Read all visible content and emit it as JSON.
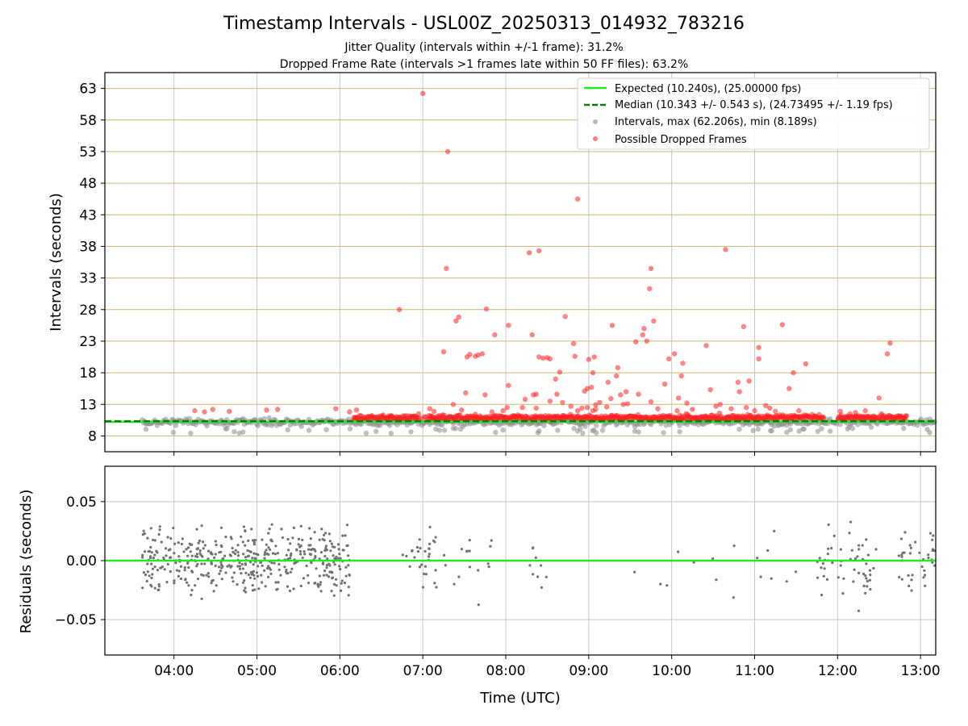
{
  "title": "Timestamp Intervals - USL00Z_20250313_014932_783216",
  "subtitle_1": "Jitter Quality (intervals within +/-1 frame): 31.2%",
  "subtitle_2": "Dropped Frame Rate (intervals >1 frames late within 50 FF files): 63.2%",
  "colors": {
    "expected": "#22e822",
    "median": "#0a7a0a",
    "intervals": "#8c8c8c",
    "dropped": "#ff2020",
    "hgrid_top": "#d2b76b",
    "grid": "#c8c8c8",
    "residual": "#707070"
  },
  "chart_data": [
    {
      "type": "scatter",
      "panel": "intervals",
      "ylabel": "Intervals (seconds)",
      "xlabel": "",
      "x_ticks": [
        "04:00",
        "05:00",
        "06:00",
        "07:00",
        "08:00",
        "09:00",
        "10:00",
        "11:00",
        "12:00",
        "13:00"
      ],
      "xlim": [
        "03:10",
        "13:11"
      ],
      "y_ticks": [
        8,
        13,
        18,
        23,
        28,
        33,
        38,
        43,
        48,
        53,
        58,
        63
      ],
      "ylim": [
        5.5,
        65.5
      ],
      "grid": true,
      "legend_position": "top-right",
      "legend": [
        "Expected (10.240s), (25.00000 fps)",
        "Median (10.343 +/- 0.543 s), (24.73495 +/- 1.19 fps)",
        "Intervals, max (62.206s), min (8.189s)",
        "Possible Dropped Frames"
      ],
      "expected_interval": 10.24,
      "median_interval": 10.343,
      "interval_max": 62.206,
      "interval_min": 8.189,
      "dropped_outliers": [
        [
          "04:15",
          12.0
        ],
        [
          "04:22",
          11.8
        ],
        [
          "04:28",
          12.2
        ],
        [
          "04:40",
          11.9
        ],
        [
          "05:07",
          12.1
        ],
        [
          "05:15",
          12.2
        ],
        [
          "05:57",
          12.3
        ],
        [
          "06:07",
          11.8
        ],
        [
          "06:12",
          12.1
        ],
        [
          "06:43",
          28.0
        ],
        [
          "06:57",
          11.5
        ],
        [
          "07:00",
          62.2
        ],
        [
          "07:05",
          12.3
        ],
        [
          "07:08",
          11.9
        ],
        [
          "07:15",
          21.3
        ],
        [
          "07:17",
          34.5
        ],
        [
          "07:18",
          53.0
        ],
        [
          "07:22",
          13.0
        ],
        [
          "07:24",
          26.2
        ],
        [
          "07:26",
          26.8
        ],
        [
          "07:28",
          12.1
        ],
        [
          "07:31",
          14.8
        ],
        [
          "07:32",
          20.5
        ],
        [
          "07:34",
          20.9
        ],
        [
          "07:38",
          20.6
        ],
        [
          "07:40",
          20.8
        ],
        [
          "07:43",
          21.0
        ],
        [
          "07:45",
          14.5
        ],
        [
          "07:46",
          28.1
        ],
        [
          "07:50",
          11.8
        ],
        [
          "07:52",
          24.0
        ],
        [
          "07:58",
          12.0
        ],
        [
          "08:01",
          12.5
        ],
        [
          "08:02",
          16.0
        ],
        [
          "08:02",
          25.5
        ],
        [
          "08:12",
          12.5
        ],
        [
          "08:14",
          13.8
        ],
        [
          "08:17",
          37.0
        ],
        [
          "08:19",
          24.0
        ],
        [
          "08:20",
          14.5
        ],
        [
          "08:22",
          14.6
        ],
        [
          "08:22",
          12.4
        ],
        [
          "08:24",
          37.3
        ],
        [
          "08:24",
          20.5
        ],
        [
          "08:27",
          20.3
        ],
        [
          "08:30",
          20.4
        ],
        [
          "08:32",
          20.2
        ],
        [
          "08:32",
          13.5
        ],
        [
          "08:36",
          17.0
        ],
        [
          "08:37",
          14.6
        ],
        [
          "08:39",
          18.1
        ],
        [
          "08:41",
          13.3
        ],
        [
          "08:43",
          26.9
        ],
        [
          "08:47",
          12.7
        ],
        [
          "08:49",
          22.6
        ],
        [
          "08:50",
          20.6
        ],
        [
          "08:52",
          12.0
        ],
        [
          "08:52",
          45.5
        ],
        [
          "08:55",
          12.4
        ],
        [
          "08:57",
          15.1
        ],
        [
          "08:59",
          12.5
        ],
        [
          "08:59",
          15.5
        ],
        [
          "09:00",
          20.1
        ],
        [
          "09:02",
          15.7
        ],
        [
          "09:03",
          12.0
        ],
        [
          "09:03",
          18.0
        ],
        [
          "09:04",
          20.5
        ],
        [
          "09:05",
          12.2
        ],
        [
          "09:05",
          12.9
        ],
        [
          "09:08",
          13.3
        ],
        [
          "09:13",
          12.6
        ],
        [
          "09:14",
          16.5
        ],
        [
          "09:16",
          13.9
        ],
        [
          "09:17",
          25.5
        ],
        [
          "09:20",
          17.5
        ],
        [
          "09:21",
          18.8
        ],
        [
          "09:23",
          14.5
        ],
        [
          "09:25",
          13.0
        ],
        [
          "09:27",
          15.0
        ],
        [
          "09:28",
          13.1
        ],
        [
          "09:34",
          22.9
        ],
        [
          "09:36",
          14.6
        ],
        [
          "09:39",
          24.0
        ],
        [
          "09:40",
          25.0
        ],
        [
          "09:42",
          23.0
        ],
        [
          "09:44",
          31.3
        ],
        [
          "09:45",
          34.5
        ],
        [
          "09:45",
          13.4
        ],
        [
          "09:47",
          26.2
        ],
        [
          "09:50",
          12.3
        ],
        [
          "09:55",
          16.2
        ],
        [
          "09:58",
          20.2
        ],
        [
          "10:02",
          21.0
        ],
        [
          "10:04",
          12.0
        ],
        [
          "10:05",
          14.0
        ],
        [
          "10:07",
          17.5
        ],
        [
          "10:08",
          19.5
        ],
        [
          "10:11",
          13.2
        ],
        [
          "10:15",
          12.2
        ],
        [
          "10:25",
          22.3
        ],
        [
          "10:28",
          15.3
        ],
        [
          "10:32",
          12.7
        ],
        [
          "10:35",
          13.0
        ],
        [
          "10:39",
          37.5
        ],
        [
          "10:43",
          12.3
        ],
        [
          "10:48",
          16.5
        ],
        [
          "10:49",
          15.0
        ],
        [
          "10:52",
          25.3
        ],
        [
          "10:54",
          12.5
        ],
        [
          "10:56",
          16.7
        ],
        [
          "11:00",
          12.0
        ],
        [
          "11:03",
          22.0
        ],
        [
          "11:03",
          20.2
        ],
        [
          "11:08",
          12.8
        ],
        [
          "11:11",
          12.4
        ],
        [
          "11:15",
          11.9
        ],
        [
          "11:20",
          25.6
        ],
        [
          "11:25",
          15.5
        ],
        [
          "11:28",
          18.0
        ],
        [
          "11:32",
          12.0
        ],
        [
          "11:37",
          19.4
        ],
        [
          "12:02",
          11.9
        ],
        [
          "12:09",
          11.5
        ],
        [
          "12:13",
          11.7
        ],
        [
          "12:20",
          12.0
        ],
        [
          "12:30",
          14.0
        ],
        [
          "12:36",
          21.0
        ],
        [
          "12:38",
          22.7
        ]
      ],
      "notes_series": [
        {
          "name": "Intervals",
          "x_range": [
            "03:37",
            "13:11"
          ],
          "y_band": [
            8.2,
            12.0
          ]
        },
        {
          "name": "Possible Dropped Frames",
          "x_range": [
            "06:10",
            "12:50"
          ],
          "y_band": [
            9.8,
            12.5
          ]
        }
      ]
    },
    {
      "type": "scatter",
      "panel": "residuals",
      "ylabel": "Residuals (seconds)",
      "xlabel": "Time (UTC)",
      "x_ticks": [
        "04:00",
        "05:00",
        "06:00",
        "07:00",
        "08:00",
        "09:00",
        "10:00",
        "11:00",
        "12:00",
        "13:00"
      ],
      "xlim": [
        "03:10",
        "13:11"
      ],
      "y_ticks": [
        "−0.05",
        "0.00",
        "0.05"
      ],
      "y_tick_values": [
        -0.05,
        0.0,
        0.05
      ],
      "ylim": [
        -0.08,
        0.08
      ],
      "grid": true,
      "zero_line": 0.0,
      "clusters": [
        {
          "x_range": [
            "03:37",
            "06:08"
          ],
          "density": "high"
        },
        {
          "x_range": [
            "06:45",
            "07:10"
          ],
          "density": "medium"
        },
        {
          "x_range": [
            "07:15",
            "07:50"
          ],
          "density": "low"
        },
        {
          "x_range": [
            "08:15",
            "08:35"
          ],
          "density": "low"
        },
        {
          "x_range": [
            "09:30",
            "11:40"
          ],
          "density": "sparse"
        },
        {
          "x_range": [
            "11:45",
            "12:30"
          ],
          "density": "medium"
        },
        {
          "x_range": [
            "12:40",
            "13:11"
          ],
          "density": "medium"
        }
      ]
    }
  ]
}
